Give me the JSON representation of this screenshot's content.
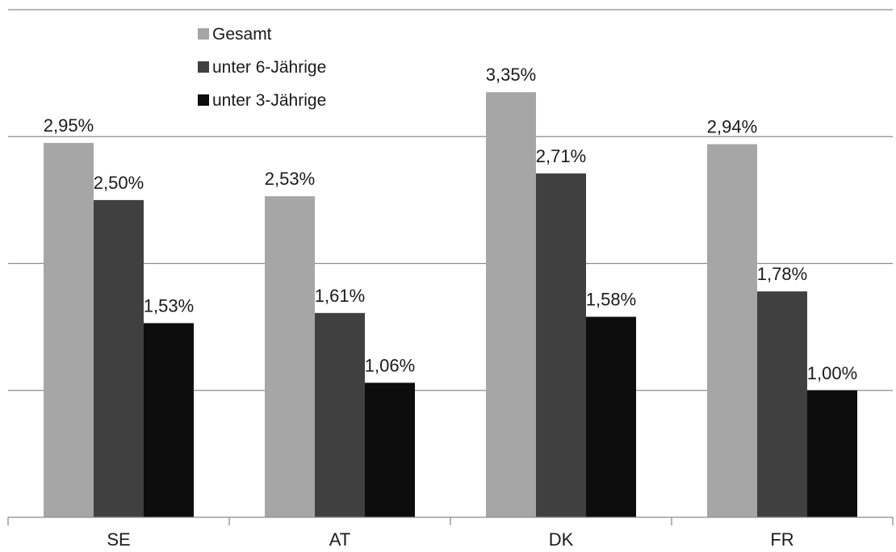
{
  "chart_data": {
    "type": "bar",
    "categories": [
      "SE",
      "AT",
      "DK",
      "FR"
    ],
    "series": [
      {
        "name": "Gesamt",
        "values": [
          2.95,
          2.53,
          3.35,
          2.94
        ],
        "labels": [
          "2,95%",
          "2,53%",
          "3,35%",
          "2,94%"
        ],
        "color": "#a6a6a6"
      },
      {
        "name": "unter 6-Jährige",
        "values": [
          2.5,
          1.61,
          2.71,
          1.78
        ],
        "labels": [
          "2,50%",
          "1,61%",
          "2,71%",
          "1,78%"
        ],
        "color": "#404040"
      },
      {
        "name": "unter 3-Jährige",
        "values": [
          1.53,
          1.06,
          1.58,
          1.0
        ],
        "labels": [
          "1,53%",
          "1,06%",
          "1,58%",
          "1,00%"
        ],
        "color": "#0d0d0d"
      }
    ],
    "ylim": [
      0,
      4
    ],
    "gridlines": [
      1,
      2,
      3,
      4
    ],
    "grid": true,
    "legend_position": "top-left",
    "unit": "%",
    "title": "",
    "xlabel": "",
    "ylabel": ""
  }
}
